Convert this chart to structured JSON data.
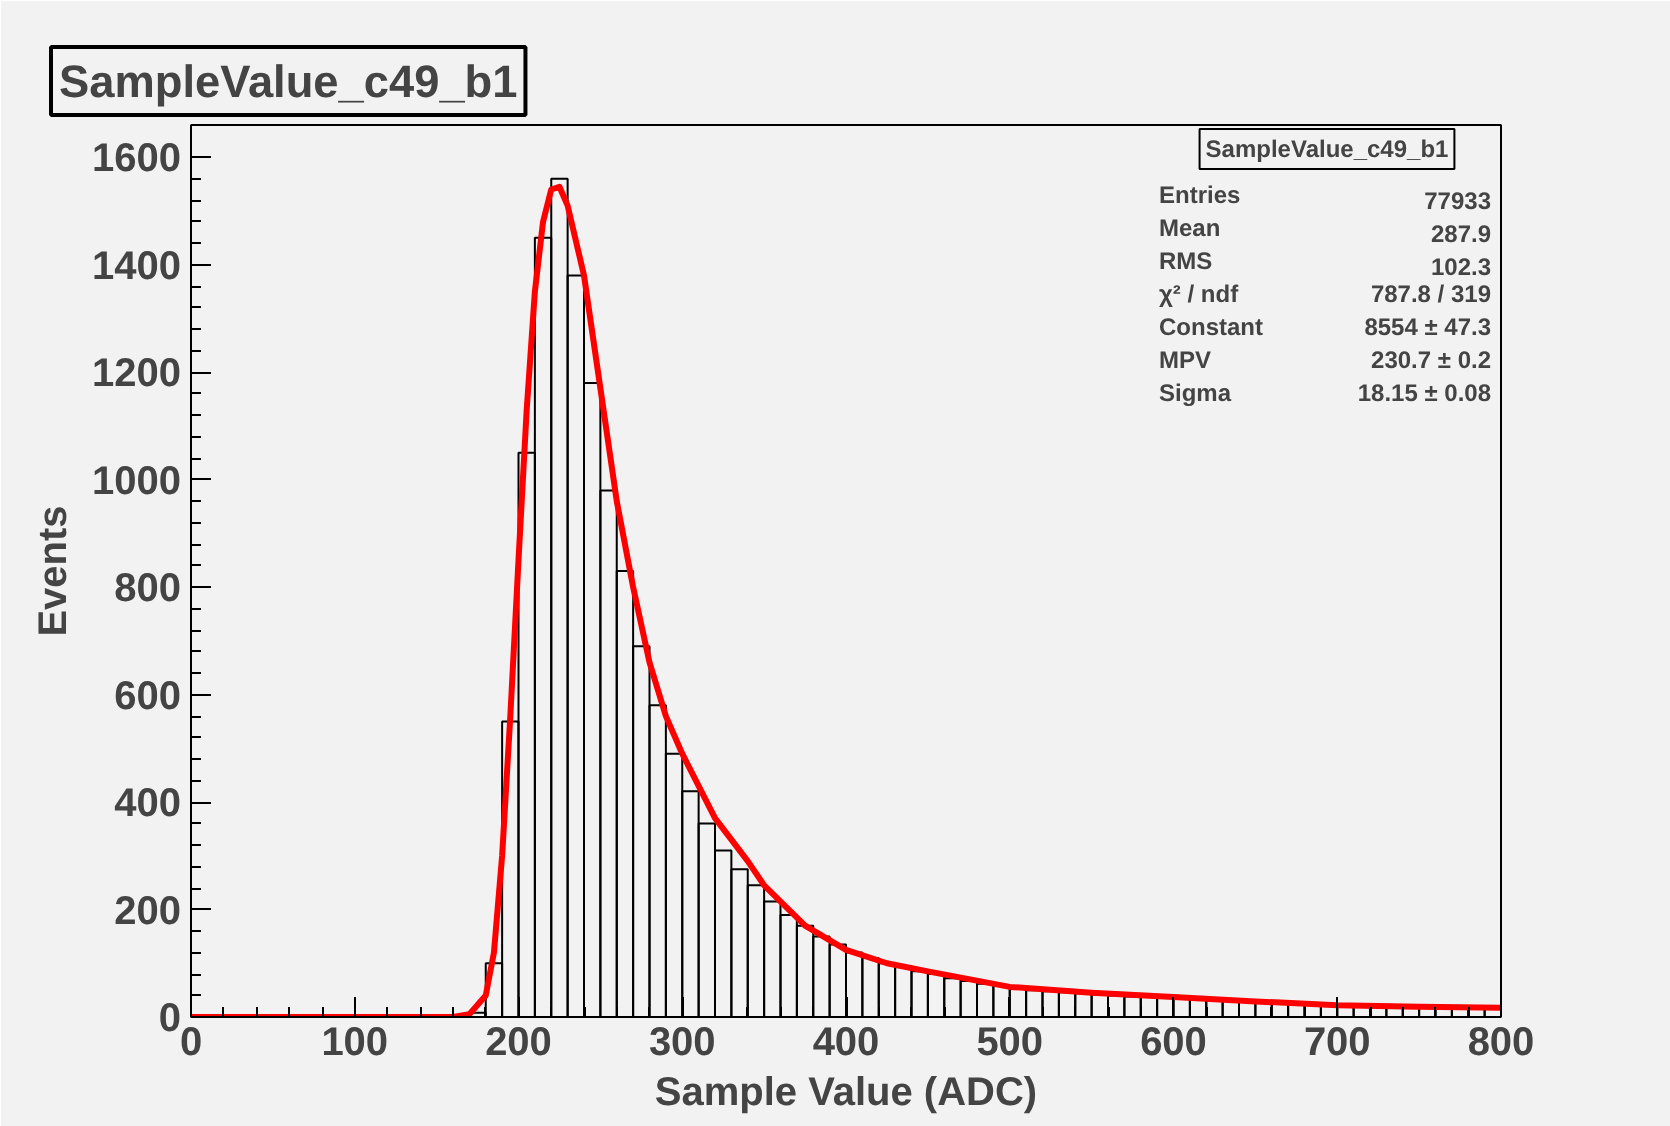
{
  "chart_data": {
    "type": "histogram",
    "title": "SampleValue_c49_b1",
    "xlabel": "Sample Value (ADC)",
    "ylabel": "Events",
    "bins": [
      0,
      10,
      20,
      30,
      40,
      50,
      60,
      70,
      80,
      90,
      100,
      110,
      120,
      130,
      140,
      150,
      160,
      170,
      180,
      190,
      200,
      210,
      220,
      230,
      240,
      250,
      260,
      270,
      280,
      290,
      300,
      310,
      320,
      330,
      340,
      350,
      360,
      370,
      380,
      390,
      400,
      410,
      420,
      430,
      440,
      450,
      460,
      470,
      480,
      490,
      500,
      510,
      520,
      530,
      540,
      550,
      560,
      570,
      580,
      590,
      600,
      610,
      620,
      630,
      640,
      650,
      660,
      670,
      680,
      690,
      700,
      710,
      720,
      730,
      740,
      750,
      760,
      770,
      780,
      790,
      800
    ],
    "values": [
      0,
      0,
      0,
      0,
      0,
      0,
      0,
      0,
      0,
      0,
      0,
      0,
      0,
      0,
      0,
      0,
      3,
      8,
      100,
      550,
      1050,
      1450,
      1560,
      1380,
      1180,
      980,
      830,
      690,
      580,
      490,
      420,
      360,
      310,
      275,
      245,
      215,
      190,
      170,
      150,
      135,
      120,
      110,
      100,
      95,
      85,
      80,
      72,
      67,
      62,
      58,
      55,
      50,
      48,
      46,
      44,
      42,
      40,
      38,
      37,
      36,
      34,
      32,
      31,
      30,
      29,
      28,
      27,
      26,
      25,
      24,
      23,
      22,
      21,
      20,
      20,
      19,
      19,
      18,
      18,
      17
    ],
    "color": "#000000",
    "series": [
      {
        "type": "line",
        "color": "#ff0000",
        "x": [
          0,
          160,
          170,
          180,
          185,
          190,
          195,
          200,
          205,
          210,
          215,
          220,
          225,
          230,
          240,
          250,
          260,
          270,
          280,
          290,
          300,
          320,
          340,
          350,
          375,
          400,
          425,
          450,
          500,
          550,
          600,
          650,
          700,
          750,
          800
        ],
        "values": [
          0,
          0,
          5,
          40,
          120,
          300,
          560,
          850,
          1130,
          1350,
          1480,
          1540,
          1545,
          1510,
          1380,
          1170,
          960,
          800,
          660,
          560,
          490,
          370,
          290,
          245,
          170,
          125,
          100,
          85,
          56,
          45,
          37,
          29,
          22,
          19,
          17
        ]
      }
    ],
    "xlim": [
      0,
      800
    ],
    "xticks": [
      0,
      100,
      200,
      300,
      400,
      500,
      600,
      700,
      800
    ],
    "ylim": [
      0,
      1660
    ],
    "yticks": [
      0,
      200,
      400,
      600,
      800,
      1000,
      1200,
      1400,
      1600
    ],
    "annotations": [
      "SampleValue_c49_b1",
      "Entries",
      "77933",
      "Mean",
      "287.9",
      "RMS",
      "102.3",
      "χ² / ndf",
      "787.8 / 319",
      "Constant",
      "8554 ± 47.3",
      "MPV",
      "230.7 ± 0.2",
      "Sigma",
      "18.15 ± 0.08"
    ],
    "grid": false
  }
}
